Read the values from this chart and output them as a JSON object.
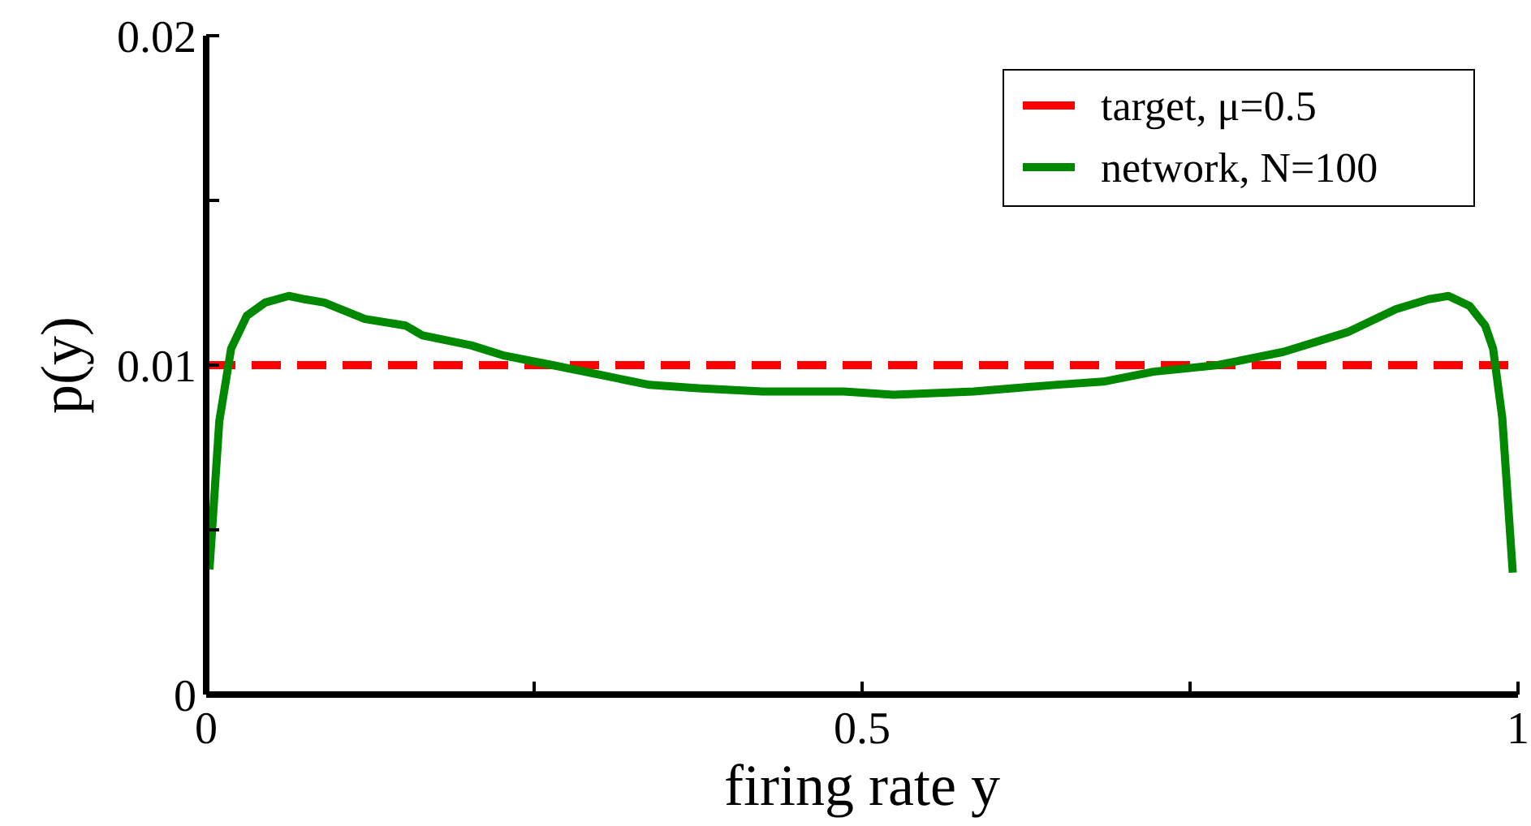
{
  "chart_data": {
    "type": "line",
    "xlabel": "firing rate y",
    "ylabel": "p(y)",
    "xlim": [
      0,
      1
    ],
    "ylim": [
      0,
      0.02
    ],
    "xticks": [
      0,
      {
        "value": 0.25,
        "label": null
      },
      0.5,
      {
        "value": 0.75,
        "label": null
      },
      1
    ],
    "yticks": [
      0,
      {
        "value": 0.005,
        "label": null
      },
      0.01,
      {
        "value": 0.015,
        "label": null
      },
      0.02
    ],
    "grid": false,
    "legend": "top right",
    "marker": "none",
    "series": [
      {
        "name": "target, μ=0.5",
        "color": "#ff0000",
        "line_style": "dashed",
        "x": [
          0,
          1
        ],
        "values": [
          0.01,
          0.01
        ]
      },
      {
        "name": "network, N=100",
        "color": "#008800",
        "line_style": "solid",
        "x": [
          0.0025,
          0.01,
          0.019,
          0.031,
          0.045,
          0.063,
          0.075,
          0.09,
          0.121,
          0.152,
          0.165,
          0.202,
          0.226,
          0.264,
          0.301,
          0.338,
          0.375,
          0.424,
          0.486,
          0.524,
          0.585,
          0.647,
          0.684,
          0.722,
          0.771,
          0.821,
          0.87,
          0.907,
          0.932,
          0.947,
          0.963,
          0.975,
          0.981,
          0.988,
          0.996
        ],
        "values": [
          0.0038,
          0.0083,
          0.0105,
          0.0115,
          0.0119,
          0.0121,
          0.012,
          0.0119,
          0.0114,
          0.0112,
          0.0109,
          0.0106,
          0.0103,
          0.01,
          0.0097,
          0.0094,
          0.0093,
          0.0092,
          0.0092,
          0.0091,
          0.0092,
          0.0094,
          0.0095,
          0.0098,
          0.01,
          0.0104,
          0.011,
          0.0117,
          0.012,
          0.0121,
          0.0118,
          0.0112,
          0.0105,
          0.0084,
          0.0037
        ]
      }
    ]
  }
}
